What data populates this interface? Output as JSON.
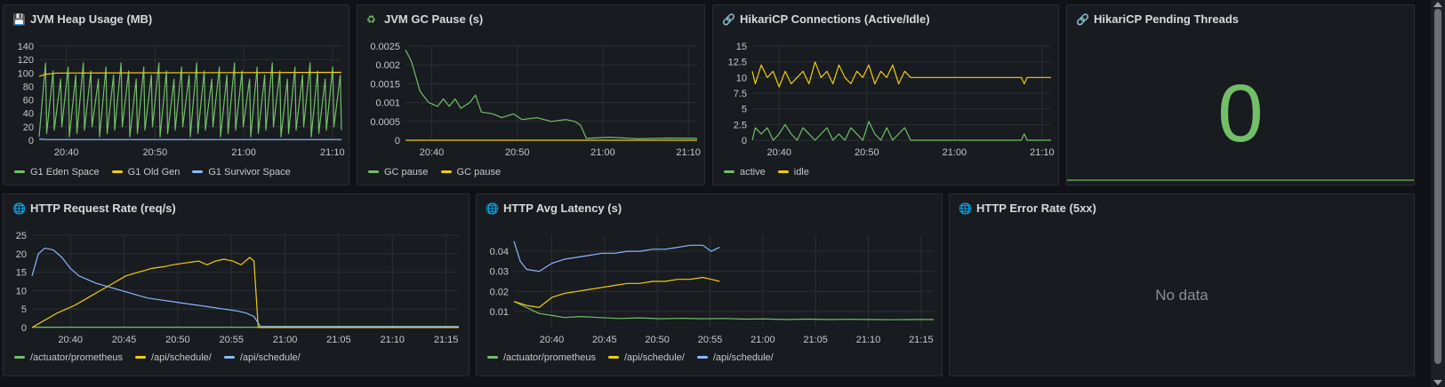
{
  "colors": {
    "green": "#73bf69",
    "yellow": "#f2cc0c",
    "blue": "#8ab8ff",
    "grid": "#2c2f35"
  },
  "panels": [
    {
      "id": "heap",
      "title": "JVM Heap Usage (MB)",
      "icon": "💾",
      "icon_name": "floppy-disk-icon"
    },
    {
      "id": "gc",
      "title": "JVM GC Pause (s)",
      "icon": "♻",
      "icon_name": "recycle-icon"
    },
    {
      "id": "hikari",
      "title": "HikariCP Connections (Active/Idle)",
      "icon": "🔗",
      "icon_name": "link-icon"
    },
    {
      "id": "pending",
      "title": "HikariCP Pending Threads",
      "icon": "🔗",
      "icon_name": "link-icon",
      "value": "0"
    },
    {
      "id": "reqrate",
      "title": "HTTP Request Rate (req/s)",
      "icon": "🌐",
      "icon_name": "globe-icon"
    },
    {
      "id": "latency",
      "title": "HTTP Avg Latency (s)",
      "icon": "🌐",
      "icon_name": "globe-icon"
    },
    {
      "id": "errors",
      "title": "HTTP Error Rate (5xx)",
      "icon": "🌐",
      "icon_name": "globe-icon",
      "message": "No data"
    }
  ],
  "chart_data": [
    {
      "id": "heap",
      "type": "line",
      "x_ticks": [
        "20:40",
        "20:50",
        "21:00",
        "21:10"
      ],
      "y_ticks": [
        "140",
        "120",
        "100",
        "80",
        "60",
        "40",
        "20",
        "0"
      ],
      "ylim": [
        0,
        140
      ],
      "series": [
        {
          "name": "G1 Eden Space",
          "color": "#73bf69",
          "pattern": "sawtooth",
          "min": 5,
          "max": 115,
          "cycles": 40
        },
        {
          "name": "G1 Old Gen",
          "color": "#f2cc0c",
          "points": [
            [
              0,
              95
            ],
            [
              0.02,
              98
            ],
            [
              0.06,
              100
            ],
            [
              1,
              101
            ]
          ]
        },
        {
          "name": "G1 Survivor Space",
          "color": "#8ab8ff",
          "points": [
            [
              0,
              2
            ],
            [
              0.02,
              1
            ],
            [
              1,
              1
            ]
          ]
        }
      ]
    },
    {
      "id": "gc",
      "type": "line",
      "x_ticks": [
        "20:40",
        "20:50",
        "21:00",
        "21:10"
      ],
      "y_ticks": [
        "0.0025",
        "0.002",
        "0.0015",
        "0.001",
        "0.0005",
        "0"
      ],
      "ylim": [
        0,
        0.0025
      ],
      "series": [
        {
          "name": "GC pause",
          "color": "#73bf69",
          "points": [
            [
              0,
              0.0024
            ],
            [
              0.02,
              0.0021
            ],
            [
              0.05,
              0.0013
            ],
            [
              0.08,
              0.001
            ],
            [
              0.11,
              0.0009
            ],
            [
              0.13,
              0.0011
            ],
            [
              0.15,
              0.0009
            ],
            [
              0.17,
              0.0011
            ],
            [
              0.19,
              0.00085
            ],
            [
              0.22,
              0.001
            ],
            [
              0.24,
              0.0012
            ],
            [
              0.26,
              0.00075
            ],
            [
              0.3,
              0.0007
            ],
            [
              0.33,
              0.0006
            ],
            [
              0.37,
              0.0007
            ],
            [
              0.4,
              0.00055
            ],
            [
              0.45,
              0.0006
            ],
            [
              0.5,
              0.0005
            ],
            [
              0.55,
              0.00055
            ],
            [
              0.58,
              0.0005
            ],
            [
              0.6,
              0.0004
            ],
            [
              0.62,
              5e-05
            ],
            [
              0.7,
              8e-05
            ],
            [
              0.8,
              4e-05
            ],
            [
              0.9,
              6e-05
            ],
            [
              1,
              5e-05
            ]
          ]
        },
        {
          "name": "GC pause",
          "color": "#f2cc0c",
          "points": [
            [
              0,
              0
            ],
            [
              1,
              0
            ]
          ]
        }
      ]
    },
    {
      "id": "hikari",
      "type": "line",
      "x_ticks": [
        "20:40",
        "20:50",
        "21:00",
        "21:10"
      ],
      "y_ticks": [
        "15",
        "12.5",
        "10",
        "7.5",
        "5",
        "2.5",
        "0"
      ],
      "ylim": [
        0,
        15
      ],
      "series": [
        {
          "name": "active",
          "color": "#73bf69",
          "points": [
            [
              0,
              0
            ],
            [
              0.01,
              2
            ],
            [
              0.03,
              1
            ],
            [
              0.05,
              2
            ],
            [
              0.07,
              0
            ],
            [
              0.09,
              1
            ],
            [
              0.11,
              2.5
            ],
            [
              0.13,
              1
            ],
            [
              0.15,
              0
            ],
            [
              0.17,
              2
            ],
            [
              0.19,
              1
            ],
            [
              0.21,
              0
            ],
            [
              0.23,
              1
            ],
            [
              0.25,
              2
            ],
            [
              0.27,
              0
            ],
            [
              0.29,
              1
            ],
            [
              0.31,
              0
            ],
            [
              0.33,
              2
            ],
            [
              0.35,
              1
            ],
            [
              0.37,
              0
            ],
            [
              0.39,
              3
            ],
            [
              0.41,
              1
            ],
            [
              0.43,
              0
            ],
            [
              0.45,
              2
            ],
            [
              0.47,
              0
            ],
            [
              0.49,
              1
            ],
            [
              0.51,
              2
            ],
            [
              0.53,
              0
            ],
            [
              0.55,
              0
            ],
            [
              0.57,
              0
            ],
            [
              0.59,
              0
            ],
            [
              0.62,
              0
            ],
            [
              0.9,
              0
            ],
            [
              0.91,
              1
            ],
            [
              0.92,
              0
            ],
            [
              1,
              0
            ]
          ]
        },
        {
          "name": "idle",
          "color": "#f2cc0c",
          "points": [
            [
              0,
              11
            ],
            [
              0.01,
              9
            ],
            [
              0.03,
              12
            ],
            [
              0.05,
              10
            ],
            [
              0.07,
              11
            ],
            [
              0.09,
              8.5
            ],
            [
              0.11,
              11
            ],
            [
              0.13,
              9
            ],
            [
              0.15,
              10
            ],
            [
              0.17,
              11
            ],
            [
              0.19,
              9
            ],
            [
              0.21,
              12.5
            ],
            [
              0.23,
              10
            ],
            [
              0.25,
              11
            ],
            [
              0.27,
              9
            ],
            [
              0.29,
              12
            ],
            [
              0.31,
              10
            ],
            [
              0.33,
              9
            ],
            [
              0.35,
              11
            ],
            [
              0.37,
              10
            ],
            [
              0.39,
              12
            ],
            [
              0.41,
              9
            ],
            [
              0.43,
              11
            ],
            [
              0.45,
              10
            ],
            [
              0.47,
              12
            ],
            [
              0.49,
              9
            ],
            [
              0.51,
              11
            ],
            [
              0.53,
              10
            ],
            [
              0.55,
              10
            ],
            [
              0.6,
              10
            ],
            [
              0.9,
              10
            ],
            [
              0.91,
              9
            ],
            [
              0.92,
              10
            ],
            [
              1,
              10
            ]
          ]
        }
      ]
    },
    {
      "id": "reqrate",
      "type": "line",
      "x_ticks": [
        "20:40",
        "20:45",
        "20:50",
        "20:55",
        "21:00",
        "21:05",
        "21:10",
        "21:15"
      ],
      "y_ticks": [
        "25",
        "20",
        "15",
        "10",
        "5",
        "0"
      ],
      "ylim": [
        0,
        25
      ],
      "series": [
        {
          "name": "/actuator/prometheus",
          "color": "#73bf69",
          "points": [
            [
              0,
              0.1
            ],
            [
              1,
              0.1
            ]
          ]
        },
        {
          "name": "/api/schedule/",
          "color": "#f2cc0c",
          "points": [
            [
              0,
              0
            ],
            [
              0.03,
              2
            ],
            [
              0.06,
              4
            ],
            [
              0.1,
              6
            ],
            [
              0.13,
              8
            ],
            [
              0.16,
              10
            ],
            [
              0.19,
              12
            ],
            [
              0.22,
              14
            ],
            [
              0.25,
              15
            ],
            [
              0.28,
              16
            ],
            [
              0.31,
              16.5
            ],
            [
              0.33,
              17
            ],
            [
              0.36,
              17.5
            ],
            [
              0.39,
              18
            ],
            [
              0.41,
              17
            ],
            [
              0.43,
              18
            ],
            [
              0.45,
              18.5
            ],
            [
              0.47,
              18
            ],
            [
              0.49,
              17
            ],
            [
              0.5,
              18
            ],
            [
              0.51,
              19
            ],
            [
              0.52,
              18
            ],
            [
              0.53,
              0
            ],
            [
              1,
              0
            ]
          ]
        },
        {
          "name": "/api/schedule/",
          "color": "#8ab8ff",
          "points": [
            [
              0,
              14
            ],
            [
              0.015,
              20
            ],
            [
              0.03,
              21.5
            ],
            [
              0.05,
              21
            ],
            [
              0.07,
              19
            ],
            [
              0.09,
              16
            ],
            [
              0.11,
              14
            ],
            [
              0.13,
              13
            ],
            [
              0.15,
              12
            ],
            [
              0.18,
              11
            ],
            [
              0.21,
              10
            ],
            [
              0.24,
              9
            ],
            [
              0.27,
              8
            ],
            [
              0.3,
              7.5
            ],
            [
              0.33,
              7
            ],
            [
              0.36,
              6.5
            ],
            [
              0.39,
              6
            ],
            [
              0.42,
              5.5
            ],
            [
              0.45,
              5
            ],
            [
              0.48,
              4.5
            ],
            [
              0.5,
              4
            ],
            [
              0.52,
              3
            ],
            [
              0.535,
              0.3
            ],
            [
              1,
              0.3
            ]
          ]
        }
      ]
    },
    {
      "id": "latency",
      "type": "line",
      "x_ticks": [
        "20:40",
        "20:45",
        "20:50",
        "20:55",
        "21:00",
        "21:05",
        "21:10",
        "21:15"
      ],
      "y_ticks": [
        "0.04",
        "0.03",
        "0.02",
        "0.01"
      ],
      "ylim": [
        0.002,
        0.048
      ],
      "series": [
        {
          "name": "/actuator/prometheus",
          "color": "#73bf69",
          "points": [
            [
              0,
              0.015
            ],
            [
              0.03,
              0.012
            ],
            [
              0.06,
              0.009
            ],
            [
              0.09,
              0.008
            ],
            [
              0.12,
              0.007
            ],
            [
              0.16,
              0.0075
            ],
            [
              0.2,
              0.007
            ],
            [
              0.25,
              0.0065
            ],
            [
              0.3,
              0.0068
            ],
            [
              0.35,
              0.0064
            ],
            [
              0.4,
              0.0066
            ],
            [
              0.45,
              0.0064
            ],
            [
              0.5,
              0.0065
            ],
            [
              0.55,
              0.0062
            ],
            [
              0.6,
              0.0063
            ],
            [
              0.65,
              0.006
            ],
            [
              0.7,
              0.0062
            ],
            [
              0.75,
              0.006
            ],
            [
              0.8,
              0.0061
            ],
            [
              0.85,
              0.006
            ],
            [
              0.9,
              0.0059
            ],
            [
              0.95,
              0.006
            ],
            [
              1,
              0.006
            ]
          ]
        },
        {
          "name": "/api/schedule/",
          "color": "#f2cc0c",
          "points": [
            [
              0,
              0.015
            ],
            [
              0.03,
              0.013
            ],
            [
              0.06,
              0.012
            ],
            [
              0.09,
              0.017
            ],
            [
              0.12,
              0.019
            ],
            [
              0.15,
              0.02
            ],
            [
              0.18,
              0.021
            ],
            [
              0.21,
              0.022
            ],
            [
              0.24,
              0.023
            ],
            [
              0.27,
              0.024
            ],
            [
              0.3,
              0.024
            ],
            [
              0.33,
              0.025
            ],
            [
              0.36,
              0.025
            ],
            [
              0.39,
              0.026
            ],
            [
              0.42,
              0.026
            ],
            [
              0.45,
              0.027
            ],
            [
              0.47,
              0.026
            ],
            [
              0.49,
              0.025
            ]
          ]
        },
        {
          "name": "/api/schedule/",
          "color": "#8ab8ff",
          "points": [
            [
              0,
              0.045
            ],
            [
              0.015,
              0.035
            ],
            [
              0.03,
              0.031
            ],
            [
              0.06,
              0.03
            ],
            [
              0.09,
              0.034
            ],
            [
              0.12,
              0.036
            ],
            [
              0.15,
              0.037
            ],
            [
              0.18,
              0.038
            ],
            [
              0.21,
              0.039
            ],
            [
              0.24,
              0.039
            ],
            [
              0.27,
              0.04
            ],
            [
              0.3,
              0.04
            ],
            [
              0.33,
              0.041
            ],
            [
              0.36,
              0.041
            ],
            [
              0.39,
              0.042
            ],
            [
              0.42,
              0.043
            ],
            [
              0.45,
              0.043
            ],
            [
              0.47,
              0.04
            ],
            [
              0.49,
              0.042
            ]
          ]
        }
      ]
    }
  ]
}
